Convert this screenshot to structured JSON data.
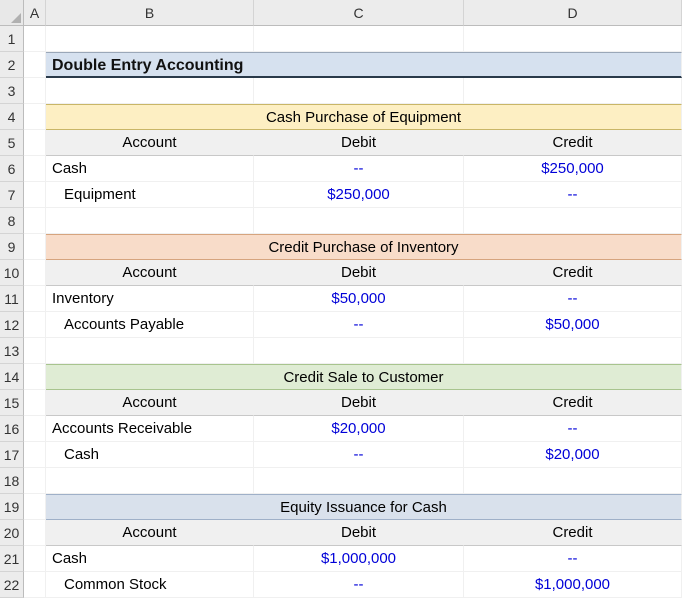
{
  "columns": [
    "A",
    "B",
    "C",
    "D"
  ],
  "row_count": 22,
  "title": "Double Entry Accounting",
  "subheaders": {
    "account": "Account",
    "debit": "Debit",
    "credit": "Credit"
  },
  "na": "--",
  "sections": [
    {
      "header": "Cash Purchase of Equipment",
      "header_class": "secYellow",
      "rows": [
        {
          "account": "Cash",
          "indent": false,
          "debit_key": "na",
          "credit_key": "val",
          "debit": "--",
          "credit": "$250,000"
        },
        {
          "account": "Equipment",
          "indent": true,
          "debit_key": "val",
          "credit_key": "na",
          "debit": "$250,000",
          "credit": "--"
        }
      ]
    },
    {
      "header": "Credit Purchase of Inventory",
      "header_class": "secPeach",
      "rows": [
        {
          "account": "Inventory",
          "indent": false,
          "debit_key": "val",
          "credit_key": "na",
          "debit": "$50,000",
          "credit": "--"
        },
        {
          "account": "Accounts Payable",
          "indent": true,
          "debit_key": "na",
          "credit_key": "val",
          "debit": "--",
          "credit": "$50,000"
        }
      ]
    },
    {
      "header": "Credit Sale to Customer",
      "header_class": "secGreen",
      "rows": [
        {
          "account": "Accounts Receivable",
          "indent": false,
          "debit_key": "val",
          "credit_key": "na",
          "debit": "$20,000",
          "credit": "--"
        },
        {
          "account": "Cash",
          "indent": true,
          "debit_key": "na",
          "credit_key": "val",
          "debit": "--",
          "credit": "$20,000"
        }
      ]
    },
    {
      "header": "Equity Issuance for Cash",
      "header_class": "secBlue",
      "rows": [
        {
          "account": "Cash",
          "indent": false,
          "debit_key": "val",
          "credit_key": "na",
          "debit": "$1,000,000",
          "credit": "--"
        },
        {
          "account": "Common Stock",
          "indent": true,
          "debit_key": "na",
          "credit_key": "val",
          "debit": "--",
          "credit": "$1,000,000"
        }
      ]
    }
  ],
  "colors": {
    "value_text": "#0000d8",
    "header_bg": "#ececec",
    "title_bg": "#d6e1ef",
    "title_border_bottom": "#2a3a4a"
  }
}
